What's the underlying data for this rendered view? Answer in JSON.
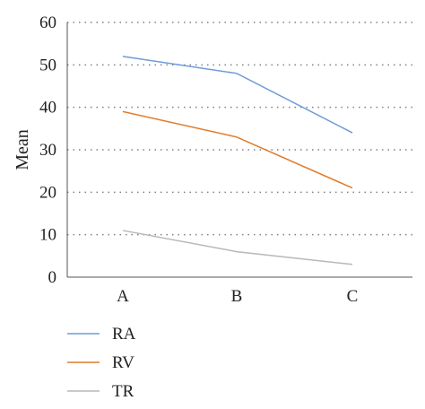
{
  "chart_data": {
    "type": "line",
    "categories": [
      "A",
      "B",
      "C"
    ],
    "ylabel": "Mean",
    "ylim": [
      0,
      60
    ],
    "yticks": [
      0,
      10,
      20,
      30,
      40,
      50,
      60
    ],
    "grid": true,
    "legend_position": "bottom-left",
    "series": [
      {
        "name": "RA",
        "color": "#6f9bd8",
        "values": [
          52,
          48,
          34
        ]
      },
      {
        "name": "RV",
        "color": "#e07b2b",
        "values": [
          39,
          33,
          21
        ]
      },
      {
        "name": "TR",
        "color": "#b8b8b8",
        "values": [
          11,
          6,
          3
        ]
      }
    ]
  }
}
